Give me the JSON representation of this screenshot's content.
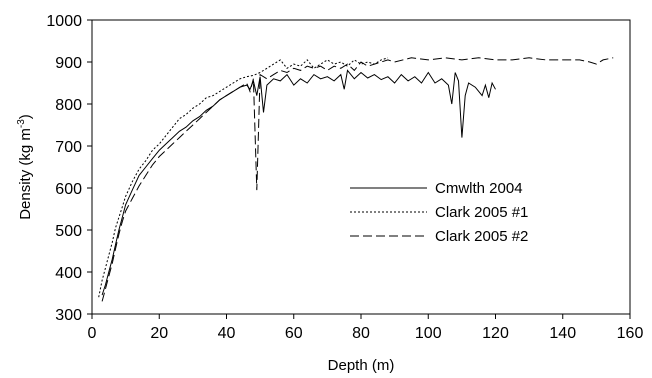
{
  "chart_data": {
    "type": "line",
    "title": "",
    "xlabel": "Depth (m)",
    "ylabel_parts": [
      "Density (kg m",
      "-3",
      ")"
    ],
    "xlim": [
      0,
      160
    ],
    "ylim": [
      300,
      1000
    ],
    "xticks": [
      0,
      20,
      40,
      60,
      80,
      100,
      120,
      140,
      160
    ],
    "yticks": [
      300,
      400,
      500,
      600,
      700,
      800,
      900,
      1000
    ],
    "xtick_labels": [
      "0",
      "20",
      "40",
      "60",
      "80",
      "100",
      "120",
      "140",
      "160"
    ],
    "ytick_labels": [
      "300",
      "400",
      "500",
      "600",
      "700",
      "800",
      "900",
      "1000"
    ],
    "grid": false,
    "legend_position": "center-right",
    "series": [
      {
        "name": "Cmwlth 2004",
        "style": "solid",
        "color": "#000000",
        "x": [
          3,
          4,
          5,
          6,
          7,
          8,
          9,
          10,
          12,
          14,
          16,
          18,
          20,
          22,
          24,
          26,
          28,
          30,
          32,
          34,
          36,
          38,
          40,
          42,
          44,
          46,
          47,
          48,
          49,
          50,
          51,
          52,
          54,
          56,
          58,
          60,
          62,
          64,
          66,
          68,
          70,
          72,
          74,
          75,
          76,
          78,
          80,
          82,
          84,
          86,
          88,
          90,
          92,
          94,
          96,
          98,
          100,
          102,
          104,
          106,
          107,
          108,
          109,
          110,
          111,
          112,
          114,
          116,
          117,
          118,
          119,
          120
        ],
        "y": [
          345,
          370,
          400,
          430,
          465,
          500,
          530,
          560,
          595,
          630,
          650,
          670,
          690,
          705,
          720,
          735,
          745,
          760,
          770,
          785,
          795,
          810,
          820,
          830,
          840,
          845,
          835,
          855,
          820,
          865,
          780,
          845,
          860,
          855,
          870,
          845,
          860,
          850,
          870,
          860,
          865,
          855,
          870,
          835,
          880,
          860,
          875,
          862,
          870,
          858,
          865,
          850,
          870,
          855,
          865,
          850,
          875,
          850,
          860,
          845,
          800,
          875,
          855,
          720,
          820,
          850,
          840,
          820,
          845,
          815,
          850,
          835
        ]
      },
      {
        "name": "Clark 2005 #1",
        "style": "dotted",
        "color": "#000000",
        "x": [
          2,
          3,
          4,
          5,
          6,
          7,
          8,
          9,
          10,
          12,
          14,
          16,
          18,
          20,
          22,
          24,
          26,
          28,
          30,
          32,
          34,
          36,
          38,
          40,
          42,
          44,
          46,
          48,
          50,
          52,
          54,
          56,
          58,
          60,
          62,
          64,
          66,
          68,
          70,
          72,
          74,
          76,
          78,
          80,
          82,
          84,
          86,
          88
        ],
        "y": [
          340,
          380,
          410,
          440,
          470,
          505,
          530,
          555,
          580,
          615,
          645,
          665,
          690,
          705,
          725,
          745,
          765,
          775,
          790,
          800,
          815,
          820,
          830,
          840,
          850,
          860,
          865,
          868,
          875,
          885,
          895,
          905,
          885,
          895,
          890,
          905,
          885,
          895,
          905,
          895,
          900,
          890,
          905,
          895,
          900,
          895,
          905,
          910
        ]
      },
      {
        "name": "Clark 2005 #2",
        "style": "dashed",
        "color": "#000000",
        "x": [
          3,
          4,
          5,
          6,
          7,
          8,
          9,
          10,
          12,
          14,
          16,
          18,
          20,
          22,
          24,
          26,
          28,
          30,
          32,
          34,
          36,
          38,
          40,
          42,
          44,
          46,
          47,
          48,
          49,
          50,
          52,
          54,
          56,
          58,
          60,
          62,
          64,
          66,
          68,
          70,
          72,
          74,
          76,
          78,
          80,
          82,
          84,
          86,
          88,
          90,
          95,
          100,
          105,
          110,
          115,
          120,
          125,
          130,
          135,
          140,
          145,
          148,
          150,
          152,
          155
        ],
        "y": [
          330,
          360,
          390,
          420,
          455,
          490,
          520,
          545,
          575,
          605,
          630,
          655,
          675,
          690,
          705,
          720,
          735,
          750,
          765,
          780,
          795,
          810,
          820,
          830,
          840,
          850,
          830,
          860,
          595,
          870,
          860,
          870,
          880,
          875,
          885,
          880,
          890,
          885,
          890,
          880,
          890,
          885,
          895,
          880,
          900,
          890,
          895,
          900,
          905,
          900,
          910,
          905,
          910,
          905,
          910,
          905,
          905,
          910,
          905,
          905,
          905,
          900,
          895,
          905,
          910
        ]
      }
    ]
  }
}
